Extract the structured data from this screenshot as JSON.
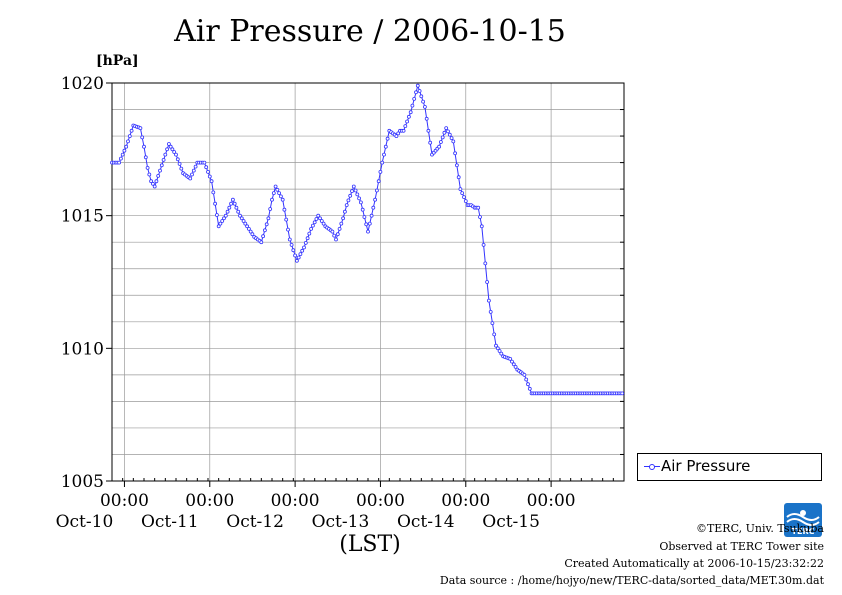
{
  "chart_data": {
    "type": "line",
    "title": "Air Pressure / 2006-10-15",
    "ylabel": "[hPa]",
    "xlabel": "(LST)",
    "ylim": [
      1005,
      1020
    ],
    "yticks": [
      "1020",
      "1015",
      "1010",
      "1005"
    ],
    "x_range_hours": [
      0,
      144
    ],
    "x_tick_time": "00:00",
    "x_tick_dates": [
      "Oct-10",
      "Oct-11",
      "Oct-12",
      "Oct-13",
      "Oct-14",
      "Oct-15"
    ],
    "grid": true,
    "legend_position": "bottom-right",
    "series": [
      {
        "name": "Air Pressure",
        "color": "#3333ff",
        "x_hours": [
          0,
          2,
          4,
          6,
          8,
          9,
          10,
          11,
          12,
          14,
          16,
          18,
          20,
          22,
          24,
          26,
          28,
          30,
          32,
          33,
          34,
          35,
          36,
          38,
          40,
          42,
          44,
          45,
          46,
          48,
          50,
          52,
          54,
          56,
          58,
          60,
          62,
          63,
          64,
          65,
          66,
          68,
          70,
          72,
          74,
          76,
          78,
          80,
          81,
          82,
          84,
          86,
          88,
          90,
          92,
          94,
          96,
          98,
          100,
          101,
          102,
          103,
          104,
          106,
          108,
          110,
          112,
          114,
          116,
          118,
          120,
          122,
          124,
          126,
          128,
          130,
          132,
          134,
          136,
          138,
          140,
          142,
          143,
          144
        ],
        "values": [
          1017.0,
          1017.0,
          1017.6,
          1018.4,
          1018.3,
          1017.6,
          1016.8,
          1016.3,
          1016.1,
          1016.9,
          1017.7,
          1017.3,
          1016.6,
          1016.4,
          1017.0,
          1017.0,
          1016.3,
          1014.6,
          1015.0,
          1015.3,
          1015.6,
          1015.3,
          1015.0,
          1014.6,
          1014.2,
          1014.0,
          1014.9,
          1015.6,
          1016.1,
          1015.6,
          1014.1,
          1013.3,
          1013.8,
          1014.5,
          1015.0,
          1014.6,
          1014.4,
          1014.1,
          1014.5,
          1014.9,
          1015.4,
          1016.1,
          1015.5,
          1014.4,
          1015.6,
          1017.0,
          1018.2,
          1018.0,
          1018.2,
          1018.2,
          1018.9,
          1019.9,
          1019.1,
          1017.3,
          1017.6,
          1018.3,
          1017.8,
          1016.0,
          1015.4,
          1015.4,
          1015.3,
          1015.3,
          1014.6,
          1011.8,
          1010.1,
          1009.7,
          1009.6,
          1009.2,
          1009.0,
          1008.3,
          1008.3,
          1008.3,
          1008.3,
          1008.3,
          1008.3,
          1008.3,
          1008.3,
          1008.3,
          1008.3,
          1008.3,
          1008.3,
          1008.3,
          1008.3,
          1008.3
        ]
      }
    ]
  },
  "footer": {
    "copyright": "©TERC, Univ. Tsukuba",
    "site": "Observed at TERC Tower site",
    "created": "Created Automatically at 2006-10-15/23:32:22",
    "source": "Data source : /home/hojyo/new/TERC-data/sorted_data/MET.30m.dat",
    "logo_text": "TERC"
  }
}
